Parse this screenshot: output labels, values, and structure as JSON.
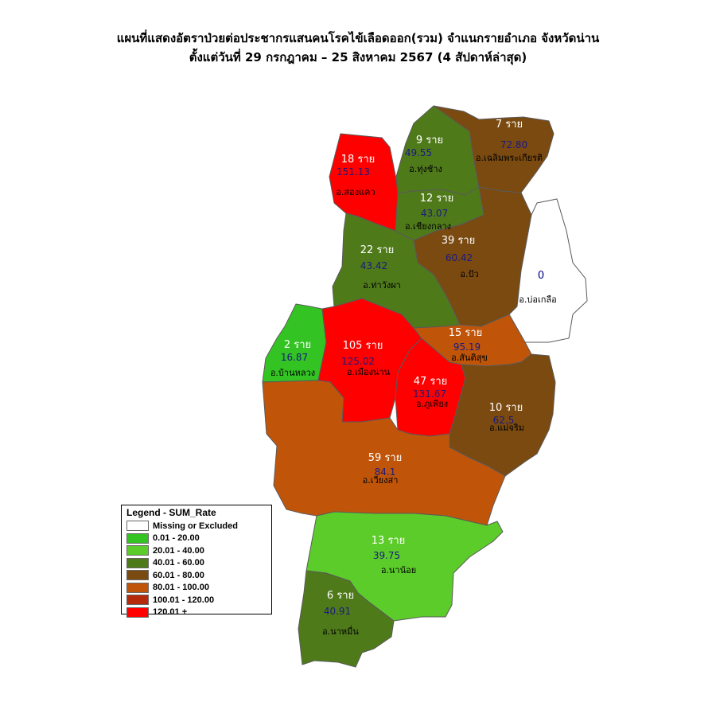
{
  "title": {
    "line1": "แผนที่แสดงอัตราป่วยต่อประชากรแสนคนโรคไข้เลือดออก(รวม) จำแนกรายอำเภอ จังหวัดน่าน",
    "line2": "ตั้งแต่วันที่  29 กรกฎาคม – 25 สิงหาคม 2567 (4 สัปดาห์ล่าสุด)"
  },
  "districts": [
    {
      "id": "chaloem",
      "count": "7 ราย",
      "rate": "72.80",
      "name": "อ.เฉลิมพระเกียรติ",
      "color": "#7a4a10"
    },
    {
      "id": "thungchang",
      "count": "9 ราย",
      "rate": "49.55",
      "name": "อ.ทุ่งช้าง",
      "color": "#4f7a1a"
    },
    {
      "id": "songkhwae",
      "count": "18 ราย",
      "rate": "151.13",
      "name": "อ.สองแคว",
      "color": "#ff0000"
    },
    {
      "id": "chiangklang",
      "count": "12 ราย",
      "rate": "43.07",
      "name": "อ.เชียงกลาง",
      "color": "#4f7a1a"
    },
    {
      "id": "pua",
      "count": "39 ราย",
      "rate": "60.42",
      "name": "อ.ปัว",
      "color": "#7a4a10"
    },
    {
      "id": "thawangpha",
      "count": "22 ราย",
      "rate": "43.42",
      "name": "อ.ท่าวังผา",
      "color": "#4f7a1a"
    },
    {
      "id": "bokluea",
      "count": "0",
      "rate": "",
      "name": "อ.บ่อเกลือ",
      "color": "#ffffff"
    },
    {
      "id": "banluang",
      "count": "2 ราย",
      "rate": "16.87",
      "name": "อ.บ้านหลวง",
      "color": "#33c423"
    },
    {
      "id": "muangnan",
      "count": "105 ราย",
      "rate": "125.02",
      "name": "อ.เมืองน่าน",
      "color": "#ff0000"
    },
    {
      "id": "santisuk",
      "count": "15 ราย",
      "rate": "95.19",
      "name": "อ.สันติสุข",
      "color": "#c0550a"
    },
    {
      "id": "phuphiang",
      "count": "47 ราย",
      "rate": "131.67",
      "name": "อ.ภูเพียง",
      "color": "#ff0000"
    },
    {
      "id": "maecharim",
      "count": "10 ราย",
      "rate": "62.5",
      "name": "อ.แม่จริม",
      "color": "#7a4a10"
    },
    {
      "id": "wiangsa",
      "count": "59 ราย",
      "rate": "84.1",
      "name": "อ.เวียงสา",
      "color": "#c0550a"
    },
    {
      "id": "nanoi",
      "count": "13 ราย",
      "rate": "39.75",
      "name": "อ.นาน้อย",
      "color": "#5ccc2a"
    },
    {
      "id": "namuen",
      "count": "6 ราย",
      "rate": "40.91",
      "name": "อ.นาหมื่น",
      "color": "#4f7a1a"
    }
  ],
  "legend": {
    "title": "Legend - SUM_Rate",
    "items": [
      {
        "label": "Missing or Excluded",
        "color": "#ffffff"
      },
      {
        "label": "0.01 - 20.00",
        "color": "#33c423"
      },
      {
        "label": "20.01 - 40.00",
        "color": "#5ccc2a"
      },
      {
        "label": "40.01 - 60.00",
        "color": "#4f7a1a"
      },
      {
        "label": "60.01 - 80.00",
        "color": "#7a4a10"
      },
      {
        "label": "80.01 - 100.00",
        "color": "#c0550a"
      },
      {
        "label": "100.01 - 120.00",
        "color": "#b52a0a"
      },
      {
        "label": "120.01 +",
        "color": "#ff0000"
      }
    ]
  }
}
